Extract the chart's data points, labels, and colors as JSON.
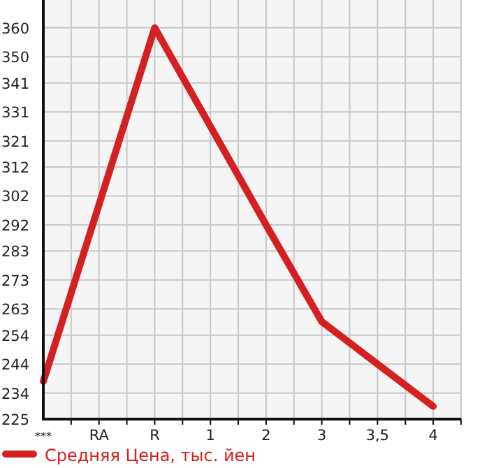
{
  "chart_data": {
    "type": "line",
    "categories": [
      "***",
      "RA",
      "R",
      "1",
      "2",
      "3",
      "3,5",
      "4"
    ],
    "series": [
      {
        "name": "Средняя Цена, тыс. йен",
        "color": "#d42020",
        "values": [
          238,
          299,
          360,
          326,
          292,
          258.6,
          244,
          229.4
        ]
      }
    ],
    "ylim": [
      225,
      369.6
    ],
    "yticks": [
      225,
      234,
      244,
      254,
      263,
      273,
      283,
      292,
      302,
      312,
      321,
      331,
      341,
      350,
      360
    ],
    "grid": true,
    "legend": "bottom",
    "marker": "none",
    "line_style": "solid"
  }
}
